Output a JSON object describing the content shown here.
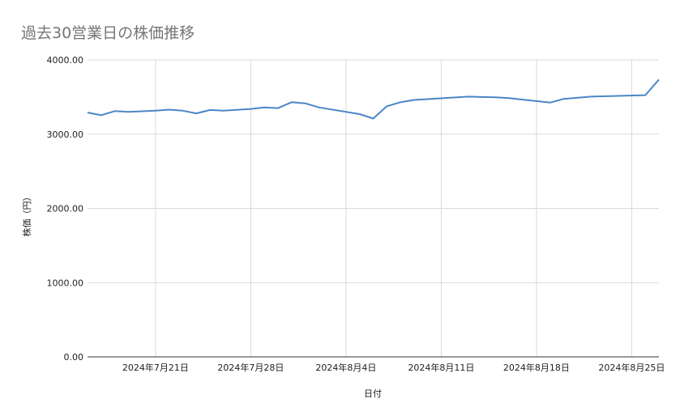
{
  "chart_data": {
    "type": "line",
    "title": "過去30営業日の株価推移",
    "xlabel": "日付",
    "ylabel": "株価（円）",
    "ylim": [
      0,
      4000
    ],
    "yticks": [
      "0.00",
      "1000.00",
      "2000.00",
      "3000.00",
      "4000.00"
    ],
    "xticks": [
      "2024年7月21日",
      "2024年7月28日",
      "2024年8月4日",
      "2024年8月11日",
      "2024年8月18日",
      "2024年8月25日"
    ],
    "xlim": [
      "2024-07-16",
      "2024-08-27"
    ],
    "grid": true,
    "series": [
      {
        "color": "#4a86c8",
        "x": [
          "2024-07-16",
          "2024-07-17",
          "2024-07-18",
          "2024-07-19",
          "2024-07-21",
          "2024-07-22",
          "2024-07-23",
          "2024-07-24",
          "2024-07-25",
          "2024-07-26",
          "2024-07-28",
          "2024-07-29",
          "2024-07-30",
          "2024-07-31",
          "2024-08-01",
          "2024-08-02",
          "2024-08-05",
          "2024-08-06",
          "2024-08-07",
          "2024-08-08",
          "2024-08-09",
          "2024-08-13",
          "2024-08-14",
          "2024-08-15",
          "2024-08-16",
          "2024-08-19",
          "2024-08-20",
          "2024-08-22",
          "2024-08-26",
          "2024-08-27"
        ],
        "values": [
          3290,
          3255,
          3310,
          3300,
          3315,
          3330,
          3315,
          3280,
          3325,
          3315,
          3340,
          3360,
          3350,
          3430,
          3415,
          3360,
          3270,
          3210,
          3375,
          3430,
          3460,
          3505,
          3500,
          3495,
          3485,
          3425,
          3475,
          3505,
          3525,
          3735
        ]
      }
    ]
  }
}
